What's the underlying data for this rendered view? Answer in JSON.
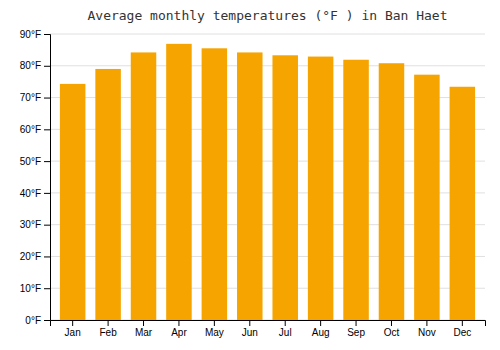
{
  "chart_data": {
    "type": "bar",
    "title": "Average monthly temperatures (°F ) in Ban Haet",
    "categories": [
      "Jan",
      "Feb",
      "Mar",
      "Apr",
      "May",
      "Jun",
      "Jul",
      "Aug",
      "Sep",
      "Oct",
      "Nov",
      "Dec"
    ],
    "values": [
      74.3,
      79.0,
      84.2,
      86.9,
      85.5,
      84.2,
      83.3,
      82.9,
      81.9,
      80.8,
      77.2,
      73.4
    ],
    "color": "#F5A400",
    "ylim": [
      0,
      90
    ],
    "yticks": [
      {
        "value": 0,
        "label": "0°F"
      },
      {
        "value": 10,
        "label": "10°F"
      },
      {
        "value": 20,
        "label": "20°F"
      },
      {
        "value": 30,
        "label": "30°F"
      },
      {
        "value": 40,
        "label": "40°F"
      },
      {
        "value": 50,
        "label": "50°F"
      },
      {
        "value": 60,
        "label": "60°F"
      },
      {
        "value": 70,
        "label": "70°F"
      },
      {
        "value": 80,
        "label": "80°F"
      },
      {
        "value": 90,
        "label": "90°F"
      }
    ],
    "grid": true
  }
}
